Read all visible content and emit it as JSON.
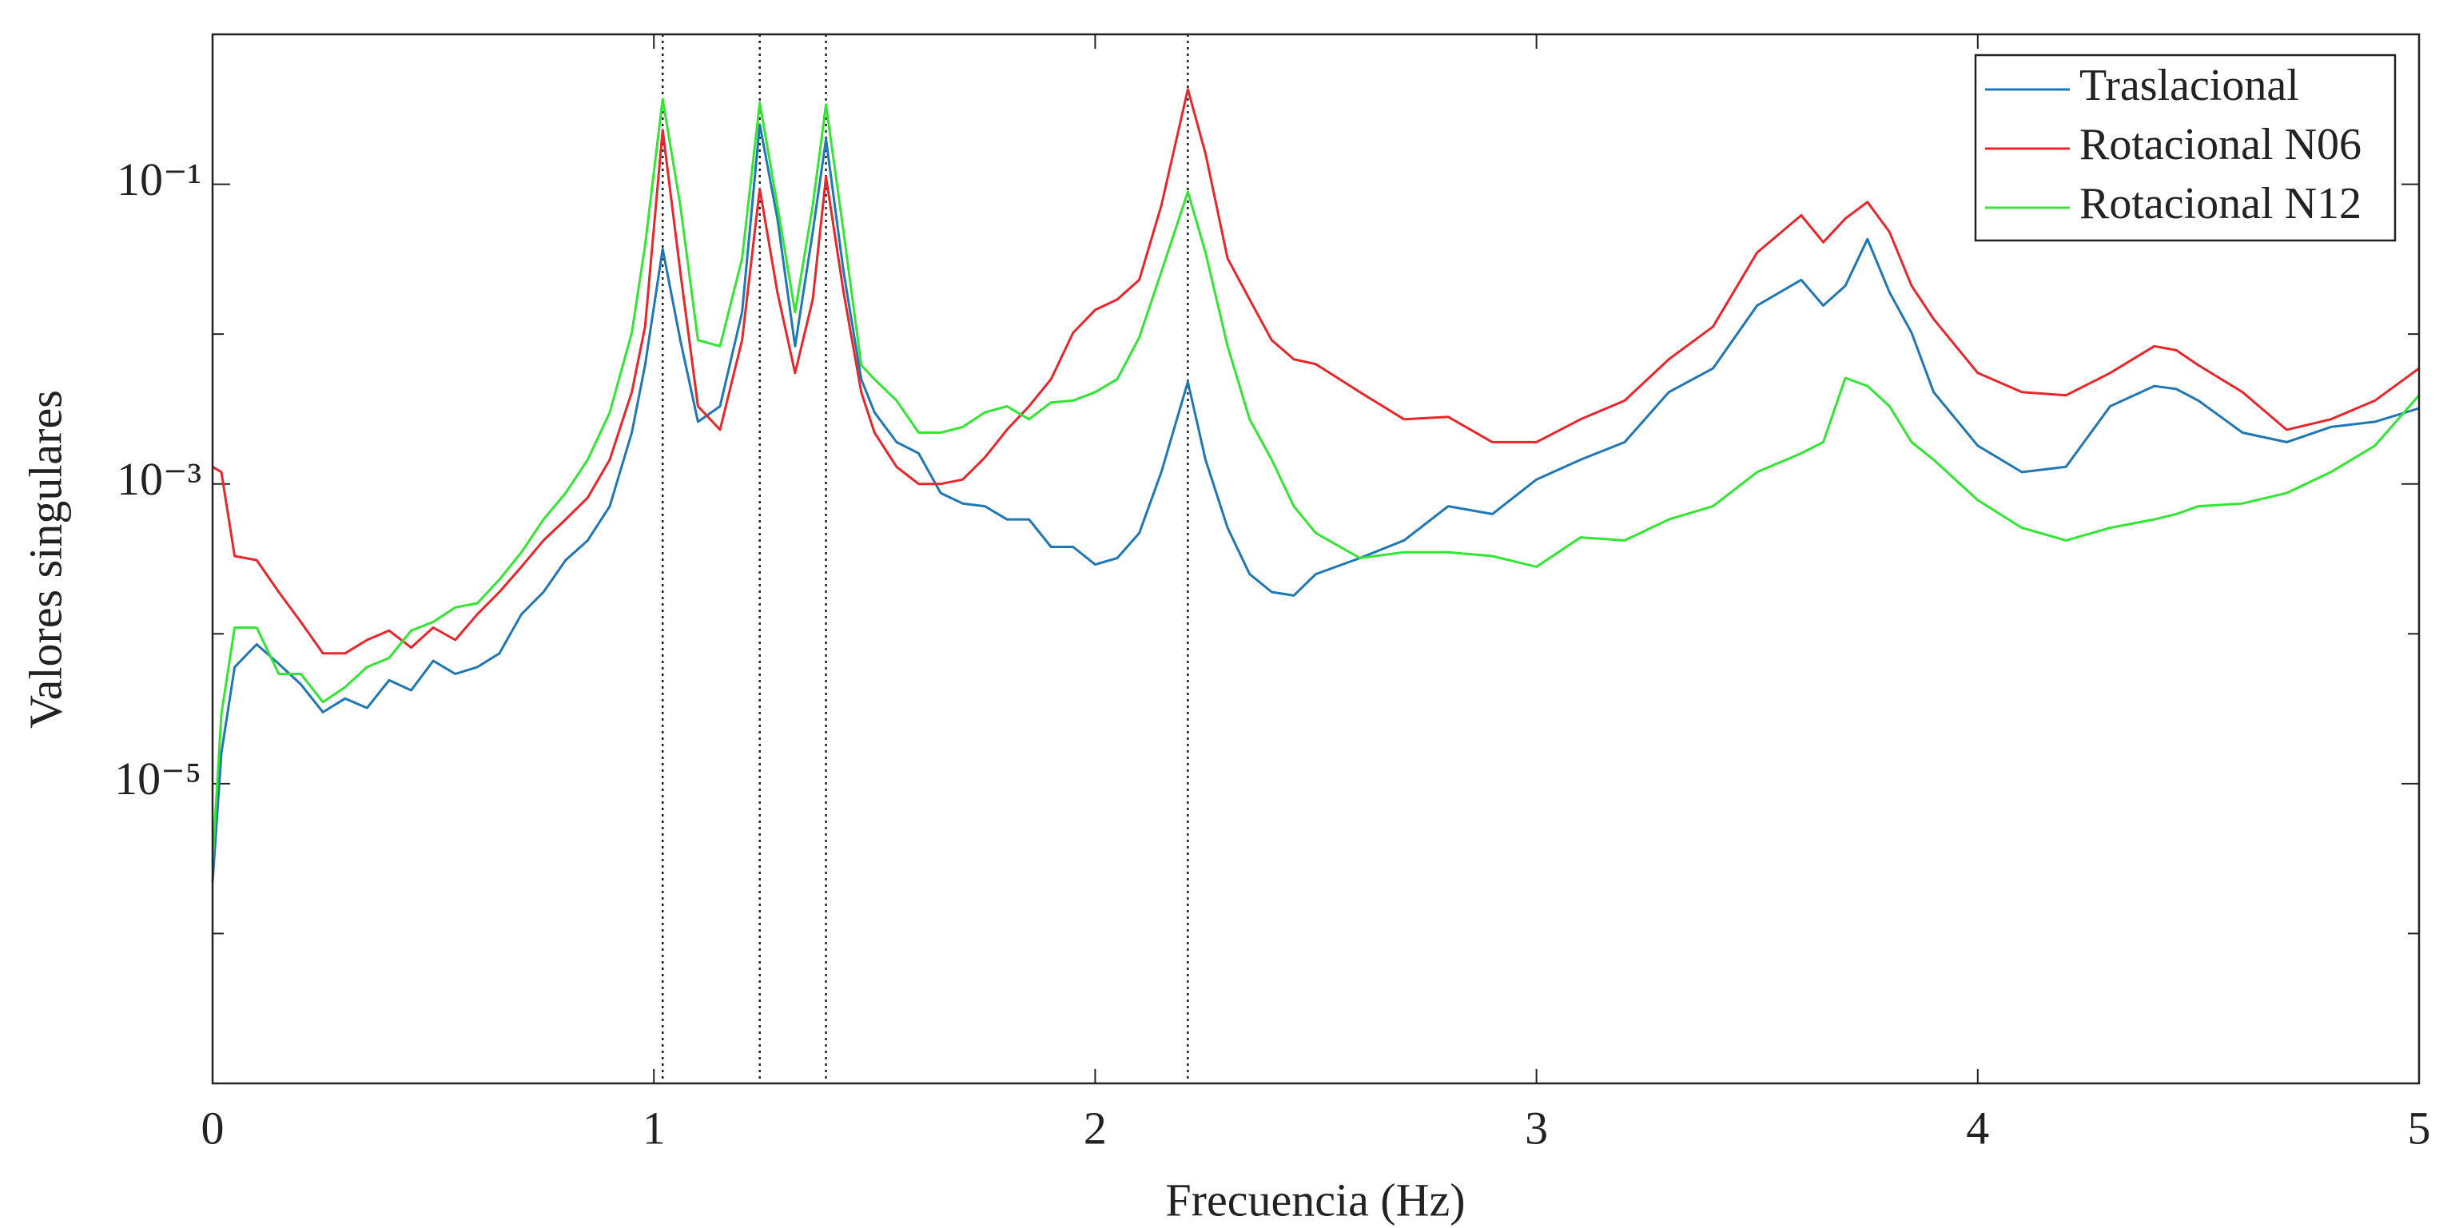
{
  "chart_data": {
    "type": "line",
    "x_label": "Frecuencia (Hz)",
    "y_label": "Valores singulares",
    "log_y": true,
    "xlim": [
      0,
      5
    ],
    "xticks": [
      0,
      1,
      2,
      3,
      4,
      5
    ],
    "ylim": [
      1e-07,
      1
    ],
    "yticks": [
      {
        "value": 1e-05,
        "label": "10⁻⁵"
      },
      {
        "value": 0.001,
        "label": "10⁻³"
      },
      {
        "value": 0.1,
        "label": "10⁻¹"
      }
    ],
    "yticks_minor": [
      1e-06,
      0.0001,
      0.01
    ],
    "reference_lines": [
      1.02,
      1.24,
      1.39,
      2.21
    ],
    "legend": "upper right",
    "x": [
      0,
      0.02,
      0.05,
      0.1,
      0.15,
      0.2,
      0.25,
      0.3,
      0.35,
      0.4,
      0.45,
      0.5,
      0.55,
      0.6,
      0.65,
      0.7,
      0.75,
      0.8,
      0.85,
      0.9,
      0.95,
      0.98,
      1.02,
      1.06,
      1.1,
      1.15,
      1.2,
      1.24,
      1.28,
      1.32,
      1.36,
      1.39,
      1.43,
      1.47,
      1.5,
      1.55,
      1.6,
      1.65,
      1.7,
      1.75,
      1.8,
      1.85,
      1.9,
      1.95,
      2.0,
      2.05,
      2.1,
      2.15,
      2.21,
      2.25,
      2.3,
      2.35,
      2.4,
      2.45,
      2.5,
      2.6,
      2.7,
      2.8,
      2.9,
      3.0,
      3.1,
      3.2,
      3.3,
      3.4,
      3.5,
      3.6,
      3.65,
      3.7,
      3.75,
      3.8,
      3.85,
      3.9,
      4.0,
      4.1,
      4.2,
      4.3,
      4.4,
      4.45,
      4.5,
      4.6,
      4.7,
      4.8,
      4.9,
      5.0
    ],
    "series": [
      {
        "name": "Traslacional",
        "color": "#1f77b4",
        "values": [
          2.2e-06,
          1.6e-05,
          6e-05,
          8.5e-05,
          6.3e-05,
          4.6e-05,
          3e-05,
          3.7e-05,
          3.2e-05,
          4.9e-05,
          4.2e-05,
          6.6e-05,
          5.4e-05,
          6e-05,
          7.4e-05,
          0.000135,
          0.00019,
          0.00031,
          0.00042,
          0.00071,
          0.0022,
          0.0062,
          0.037,
          0.0091,
          0.0026,
          0.0033,
          0.014,
          0.25,
          0.059,
          0.0083,
          0.048,
          0.2,
          0.026,
          0.005,
          0.003,
          0.0019,
          0.0016,
          0.00087,
          0.00074,
          0.00071,
          0.00058,
          0.00058,
          0.00038,
          0.00038,
          0.00029,
          0.00032,
          0.00047,
          0.0012,
          0.0048,
          0.00145,
          0.00051,
          0.00025,
          0.00019,
          0.00018,
          0.00025,
          0.00032,
          0.00042,
          0.00071,
          0.00063,
          0.00107,
          0.00145,
          0.0019,
          0.0041,
          0.0059,
          0.0155,
          0.023,
          0.0155,
          0.021,
          0.043,
          0.019,
          0.0102,
          0.0041,
          0.0018,
          0.0012,
          0.0013,
          0.0033,
          0.0045,
          0.0043,
          0.0036,
          0.0022,
          0.0019,
          0.0024,
          0.0026,
          0.0032
        ]
      },
      {
        "name": "Rotacional N06",
        "color": "#e8262b",
        "values": [
          0.0013,
          0.0012,
          0.00033,
          0.00031,
          0.00019,
          0.00012,
          7.4e-05,
          7.4e-05,
          9.1e-05,
          0.000105,
          8.1e-05,
          0.00011,
          9.1e-05,
          0.000135,
          0.00019,
          0.00028,
          0.00042,
          0.00058,
          0.00081,
          0.00145,
          0.0041,
          0.0112,
          0.23,
          0.026,
          0.0033,
          0.0023,
          0.0091,
          0.093,
          0.019,
          0.0055,
          0.017,
          0.112,
          0.019,
          0.0041,
          0.0022,
          0.0013,
          0.001,
          0.001,
          0.00107,
          0.0015,
          0.0023,
          0.0033,
          0.005,
          0.0102,
          0.0145,
          0.017,
          0.023,
          0.072,
          0.43,
          0.16,
          0.032,
          0.017,
          0.0091,
          0.0068,
          0.0063,
          0.0041,
          0.0027,
          0.0028,
          0.0019,
          0.0019,
          0.0027,
          0.0036,
          0.0068,
          0.0112,
          0.035,
          0.062,
          0.041,
          0.059,
          0.076,
          0.048,
          0.021,
          0.0126,
          0.0055,
          0.0041,
          0.0039,
          0.0055,
          0.0083,
          0.0078,
          0.0062,
          0.0041,
          0.0023,
          0.0027,
          0.0036,
          0.0059
        ]
      },
      {
        "name": "Rotacional N12",
        "color": "#33e633",
        "values": [
          3e-06,
          2.9e-05,
          0.00011,
          0.00011,
          5.4e-05,
          5.4e-05,
          3.5e-05,
          4.4e-05,
          6e-05,
          6.9e-05,
          0.000105,
          0.00012,
          0.00015,
          0.00016,
          0.00023,
          0.00035,
          0.00058,
          0.00087,
          0.00145,
          0.003,
          0.0102,
          0.039,
          0.37,
          0.072,
          0.0091,
          0.0083,
          0.032,
          0.35,
          0.072,
          0.014,
          0.072,
          0.34,
          0.048,
          0.0062,
          0.005,
          0.0036,
          0.0022,
          0.0022,
          0.0024,
          0.003,
          0.0033,
          0.0027,
          0.0035,
          0.0036,
          0.0041,
          0.005,
          0.0095,
          0.026,
          0.089,
          0.035,
          0.0083,
          0.0027,
          0.00145,
          0.00071,
          0.00047,
          0.00032,
          0.00035,
          0.00035,
          0.00033,
          0.00028,
          0.00044,
          0.00042,
          0.00058,
          0.00071,
          0.0012,
          0.0016,
          0.0019,
          0.0051,
          0.0045,
          0.0033,
          0.0019,
          0.00145,
          0.00078,
          0.00051,
          0.00042,
          0.00051,
          0.00058,
          0.00063,
          0.00071,
          0.00074,
          0.00087,
          0.0012,
          0.0018,
          0.0039
        ]
      }
    ]
  }
}
